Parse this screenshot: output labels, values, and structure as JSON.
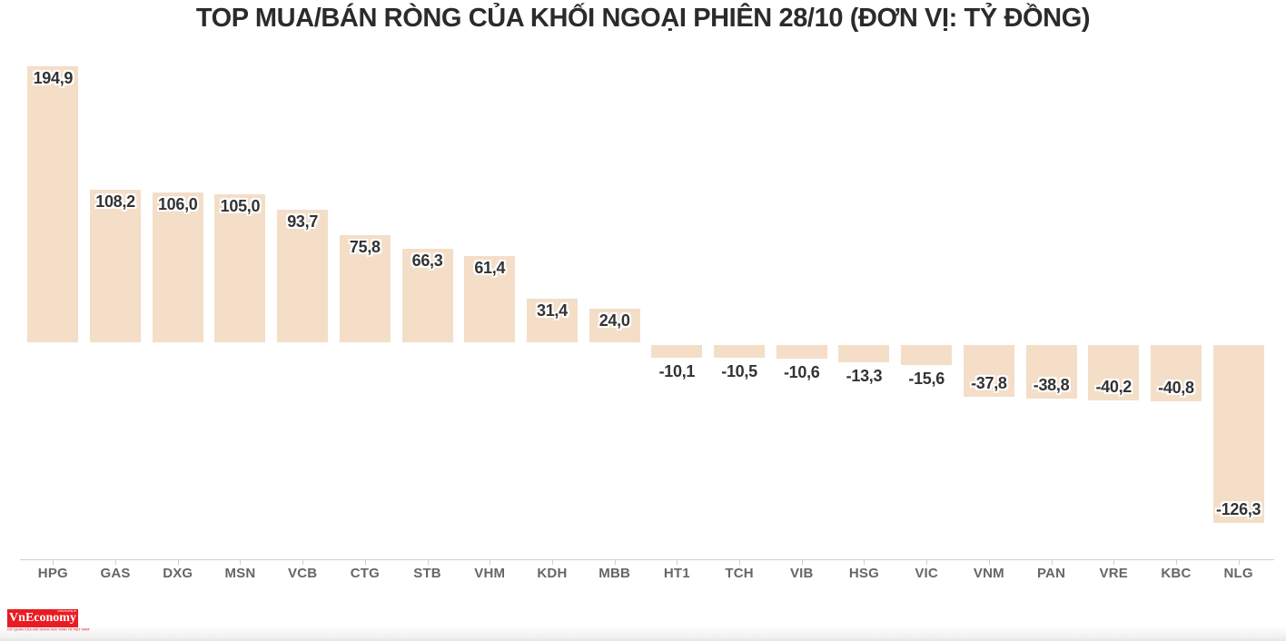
{
  "chart_data": {
    "type": "bar",
    "title": "TOP MUA/BÁN RÒNG CỦA KHỐI NGOẠI PHIÊN 28/10 (ĐƠN VỊ: TỶ ĐỒNG)",
    "categories": [
      "HPG",
      "GAS",
      "DXG",
      "MSN",
      "VCB",
      "CTG",
      "STB",
      "VHM",
      "KDH",
      "MBB",
      "HT1",
      "TCH",
      "VIB",
      "HSG",
      "VIC",
      "VNM",
      "PAN",
      "VRE",
      "KBC",
      "NLG"
    ],
    "values": [
      194.9,
      108.2,
      106.0,
      105.0,
      93.7,
      75.8,
      66.3,
      61.4,
      31.4,
      24.0,
      -10.1,
      -10.5,
      -10.6,
      -13.3,
      -15.6,
      -37.8,
      -38.8,
      -40.2,
      -40.8,
      -126.3
    ],
    "value_labels": [
      "194,9",
      "108,2",
      "106,0",
      "105,0",
      "93,7",
      "75,8",
      "66,3",
      "61,4",
      "31,4",
      "24,0",
      "-10,1",
      "-10,5",
      "-10,6",
      "-13,3",
      "-15,6",
      "-37,8",
      "-38,8",
      "-40,2",
      "-40,8",
      "-126,3"
    ],
    "xlabel": "",
    "ylabel": "",
    "ylim": [
      -140,
      210
    ],
    "grid": false,
    "legend": false,
    "bar_color": "#f4dec8",
    "value_label_color": "#333333",
    "category_label_color": "#666666",
    "axis_color": "#ccd1d6"
  },
  "branding": {
    "brand": "VnEconomy",
    "slogan": "vneconomy.vn",
    "tagline": "CƠ QUAN CỦA HỘI KHOA HỌC KINH TẾ VIỆT NAM",
    "brand_bg": "#e81c22",
    "brand_text_color": "#ffffff"
  }
}
